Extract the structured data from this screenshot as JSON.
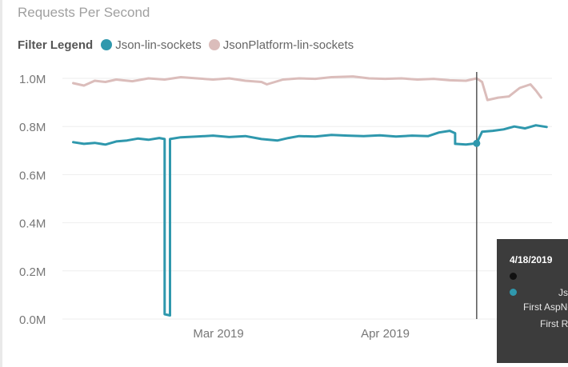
{
  "title": "Requests Per Second",
  "legend": {
    "heading": "Filter Legend",
    "items": [
      {
        "label": "Json-lin-sockets",
        "color": "#2f98ad"
      },
      {
        "label": "JsonPlatform-lin-sockets",
        "color": "#dbbdbb"
      }
    ]
  },
  "tooltip": {
    "date": "4/18/2019",
    "row_black_color": "#111111",
    "row_teal_color": "#2f98ad",
    "series_text": "Jso",
    "line1": "First AspNe",
    "line2": "First Ru"
  },
  "chart_data": {
    "type": "line",
    "title": "Requests Per Second",
    "xlabel": "",
    "ylabel": "",
    "x_range": [
      "2019-01-31",
      "2019-05-02"
    ],
    "x_ticks": [
      {
        "date": "2019-03-01",
        "label": "Mar 2019"
      },
      {
        "date": "2019-04-01",
        "label": "Apr 2019"
      }
    ],
    "ylim": [
      0,
      1000000
    ],
    "y_ticks": [
      {
        "value": 0,
        "label": "0.0M"
      },
      {
        "value": 200000,
        "label": "0.2M"
      },
      {
        "value": 400000,
        "label": "0.4M"
      },
      {
        "value": 600000,
        "label": "0.6M"
      },
      {
        "value": 800000,
        "label": "0.8M"
      },
      {
        "value": 1000000,
        "label": "1.0M"
      }
    ],
    "grid": true,
    "legend_position": "top-left",
    "hover_date": "2019-04-18",
    "series": [
      {
        "name": "Json-lin-sockets",
        "color": "#2f98ad",
        "points": [
          [
            "2019-02-02",
            735000
          ],
          [
            "2019-02-04",
            728000
          ],
          [
            "2019-02-06",
            732000
          ],
          [
            "2019-02-08",
            725000
          ],
          [
            "2019-02-10",
            738000
          ],
          [
            "2019-02-12",
            742000
          ],
          [
            "2019-02-14",
            750000
          ],
          [
            "2019-02-16",
            745000
          ],
          [
            "2019-02-18",
            752000
          ],
          [
            "2019-02-19",
            748000
          ],
          [
            "2019-02-19",
            20000
          ],
          [
            "2019-02-20",
            15000
          ],
          [
            "2019-02-20",
            748000
          ],
          [
            "2019-02-22",
            755000
          ],
          [
            "2019-02-25",
            758000
          ],
          [
            "2019-02-28",
            762000
          ],
          [
            "2019-03-03",
            756000
          ],
          [
            "2019-03-06",
            760000
          ],
          [
            "2019-03-09",
            748000
          ],
          [
            "2019-03-12",
            742000
          ],
          [
            "2019-03-14",
            752000
          ],
          [
            "2019-03-16",
            760000
          ],
          [
            "2019-03-19",
            758000
          ],
          [
            "2019-03-22",
            765000
          ],
          [
            "2019-03-25",
            762000
          ],
          [
            "2019-03-28",
            760000
          ],
          [
            "2019-03-31",
            763000
          ],
          [
            "2019-04-03",
            758000
          ],
          [
            "2019-04-06",
            762000
          ],
          [
            "2019-04-09",
            760000
          ],
          [
            "2019-04-11",
            775000
          ],
          [
            "2019-04-13",
            782000
          ],
          [
            "2019-04-14",
            772000
          ],
          [
            "2019-04-14",
            728000
          ],
          [
            "2019-04-16",
            725000
          ],
          [
            "2019-04-18",
            730000
          ],
          [
            "2019-04-19",
            778000
          ],
          [
            "2019-04-21",
            782000
          ],
          [
            "2019-04-23",
            788000
          ],
          [
            "2019-04-25",
            800000
          ],
          [
            "2019-04-27",
            792000
          ],
          [
            "2019-04-29",
            805000
          ],
          [
            "2019-05-01",
            798000
          ]
        ]
      },
      {
        "name": "JsonPlatform-lin-sockets",
        "color": "#dbbdbb",
        "points": [
          [
            "2019-02-02",
            980000
          ],
          [
            "2019-02-04",
            970000
          ],
          [
            "2019-02-06",
            990000
          ],
          [
            "2019-02-08",
            985000
          ],
          [
            "2019-02-10",
            995000
          ],
          [
            "2019-02-13",
            988000
          ],
          [
            "2019-02-16",
            1000000
          ],
          [
            "2019-02-19",
            995000
          ],
          [
            "2019-02-22",
            1005000
          ],
          [
            "2019-02-25",
            1000000
          ],
          [
            "2019-02-28",
            995000
          ],
          [
            "2019-03-03",
            1000000
          ],
          [
            "2019-03-06",
            990000
          ],
          [
            "2019-03-09",
            985000
          ],
          [
            "2019-03-10",
            975000
          ],
          [
            "2019-03-13",
            995000
          ],
          [
            "2019-03-16",
            1000000
          ],
          [
            "2019-03-19",
            998000
          ],
          [
            "2019-03-22",
            1005000
          ],
          [
            "2019-03-26",
            1008000
          ],
          [
            "2019-03-29",
            1000000
          ],
          [
            "2019-04-01",
            998000
          ],
          [
            "2019-04-04",
            1000000
          ],
          [
            "2019-04-07",
            995000
          ],
          [
            "2019-04-10",
            998000
          ],
          [
            "2019-04-13",
            992000
          ],
          [
            "2019-04-16",
            990000
          ],
          [
            "2019-04-18",
            1000000
          ],
          [
            "2019-04-19",
            985000
          ],
          [
            "2019-04-20",
            910000
          ],
          [
            "2019-04-22",
            920000
          ],
          [
            "2019-04-24",
            925000
          ],
          [
            "2019-04-26",
            960000
          ],
          [
            "2019-04-28",
            975000
          ],
          [
            "2019-04-29",
            950000
          ],
          [
            "2019-04-30",
            920000
          ]
        ]
      }
    ]
  }
}
